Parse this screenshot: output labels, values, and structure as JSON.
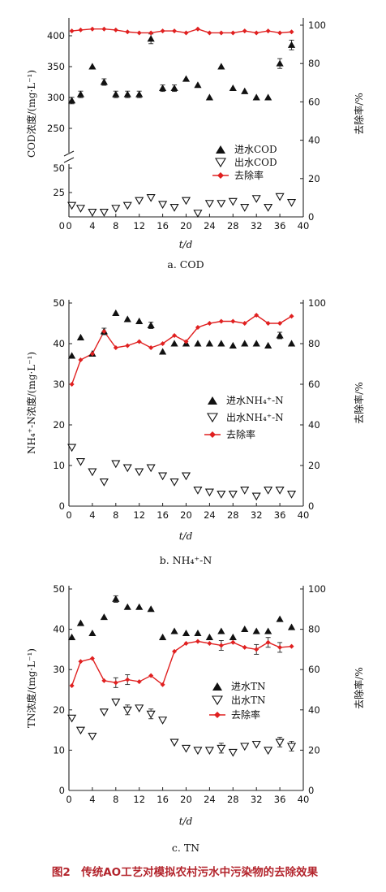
{
  "figure_title": "图2　传统AO工艺对模拟农村污水中污染物的去除效果",
  "figure_title_subscript": "N",
  "chart_data": [
    {
      "type": "scatter",
      "caption": "a. COD",
      "xlabel": "t/d",
      "ylabel": "COD浓度/(mg·L⁻¹)",
      "y2label": "去除率/%",
      "xlim": [
        0,
        40
      ],
      "x_ticks": [
        "0",
        "4",
        "8",
        "12",
        "16",
        "20",
        "24",
        "28",
        "32",
        "36",
        "40"
      ],
      "y_ticks_upper": [
        "250",
        "300",
        "350",
        "400"
      ],
      "y_ticks_lower": [
        "25",
        "50"
      ],
      "y2_ticks": [
        "0",
        "20",
        "40",
        "60",
        "80",
        "100"
      ],
      "y2lim": [
        0,
        100
      ],
      "axis_break": true,
      "legend": [
        "进水COD",
        "出水COD",
        "去除率"
      ],
      "x": [
        0.5,
        2,
        4,
        6,
        8,
        10,
        12,
        14,
        16,
        18,
        20,
        22,
        24,
        26,
        28,
        30,
        32,
        34,
        36,
        38
      ],
      "series": [
        {
          "name": "进水COD",
          "axis": "left",
          "values": [
            295,
            305,
            350,
            325,
            305,
            305,
            305,
            395,
            315,
            315,
            330,
            320,
            300,
            350,
            315,
            310,
            300,
            300,
            355,
            385
          ]
        },
        {
          "name": "出水COD",
          "axis": "left",
          "values": [
            12,
            9,
            5,
            5,
            9,
            12,
            17,
            20,
            13,
            10,
            17,
            4,
            14,
            14,
            16,
            10,
            19,
            10,
            21,
            15
          ]
        },
        {
          "name": "去除率",
          "axis": "right",
          "values": [
            97,
            97.5,
            98,
            98,
            97.5,
            96.5,
            96,
            96,
            97,
            97,
            96,
            98,
            96,
            96,
            96,
            97,
            96,
            97,
            96,
            96.5
          ]
        }
      ]
    },
    {
      "type": "scatter",
      "caption": "b. NH₄⁺-N",
      "xlabel": "t/d",
      "ylabel": "NH₄⁺-N浓度/(mg·L⁻¹)",
      "y2label": "去除率/%",
      "xlim": [
        0,
        40
      ],
      "ylim": [
        0,
        50
      ],
      "y2lim": [
        0,
        100
      ],
      "x_ticks": [
        "0",
        "4",
        "8",
        "12",
        "16",
        "20",
        "24",
        "28",
        "32",
        "36",
        "40"
      ],
      "y_ticks": [
        "0",
        "10",
        "20",
        "30",
        "40",
        "50"
      ],
      "y2_ticks": [
        "0",
        "20",
        "40",
        "60",
        "80",
        "100"
      ],
      "legend": [
        "进水NH₄⁺-N",
        "出水NH₄⁺-N",
        "去除率"
      ],
      "x": [
        0.5,
        2,
        4,
        6,
        8,
        10,
        12,
        14,
        16,
        18,
        20,
        22,
        24,
        26,
        28,
        30,
        32,
        34,
        36,
        38
      ],
      "series": [
        {
          "name": "进水NH₄⁺-N",
          "axis": "left",
          "values": [
            37,
            41.5,
            37.5,
            43,
            47.5,
            46,
            45.5,
            44.5,
            38,
            40,
            40,
            40,
            40,
            40,
            39.5,
            40,
            40,
            39.5,
            42,
            40
          ]
        },
        {
          "name": "出水NH₄⁺-N",
          "axis": "left",
          "values": [
            14.5,
            11,
            8.5,
            6,
            10.5,
            9.5,
            8.5,
            9.5,
            7.5,
            6,
            7.5,
            4,
            3.5,
            3,
            3,
            4,
            2.5,
            4,
            4,
            3
          ]
        },
        {
          "name": "去除率",
          "axis": "right",
          "values": [
            60,
            72,
            75,
            86,
            78,
            79,
            81,
            78,
            80,
            84,
            81,
            88,
            90,
            91,
            91,
            90,
            94,
            90,
            90,
            93.5
          ]
        }
      ]
    },
    {
      "type": "scatter",
      "caption": "c. TN",
      "xlabel": "t/d",
      "ylabel": "TN浓度/(mg·L⁻¹)",
      "y2label": "去除率/%",
      "xlim": [
        0,
        40
      ],
      "ylim": [
        0,
        50
      ],
      "y2lim": [
        0,
        100
      ],
      "x_ticks": [
        "0",
        "4",
        "8",
        "12",
        "16",
        "20",
        "24",
        "28",
        "32",
        "36",
        "40"
      ],
      "y_ticks": [
        "0",
        "10",
        "20",
        "30",
        "40",
        "50"
      ],
      "y2_ticks": [
        "0",
        "20",
        "40",
        "60",
        "80",
        "100"
      ],
      "legend": [
        "进水TN",
        "出水TN",
        "去除率"
      ],
      "x": [
        0.5,
        2,
        4,
        6,
        8,
        10,
        12,
        14,
        16,
        18,
        20,
        22,
        24,
        26,
        28,
        30,
        32,
        34,
        36,
        38
      ],
      "series": [
        {
          "name": "进水TN",
          "axis": "left",
          "values": [
            38,
            41.5,
            39,
            43,
            47.5,
            45.5,
            45.5,
            45,
            38,
            39.5,
            39,
            39,
            38,
            39.5,
            38,
            40,
            39.5,
            39.5,
            42.5,
            40.5
          ]
        },
        {
          "name": "出水TN",
          "axis": "left",
          "values": [
            18,
            15,
            13.5,
            19.5,
            22,
            20,
            20.5,
            19,
            17.5,
            12,
            10.5,
            10,
            10,
            10.5,
            9.5,
            11,
            11.5,
            10,
            12,
            11
          ]
        },
        {
          "name": "去除率",
          "axis": "right",
          "values": [
            52,
            64,
            65.5,
            54.5,
            53.5,
            55,
            54,
            57,
            52.5,
            69,
            73,
            74,
            73,
            72,
            73.5,
            71,
            70,
            73.5,
            71,
            71.5
          ]
        }
      ]
    }
  ]
}
